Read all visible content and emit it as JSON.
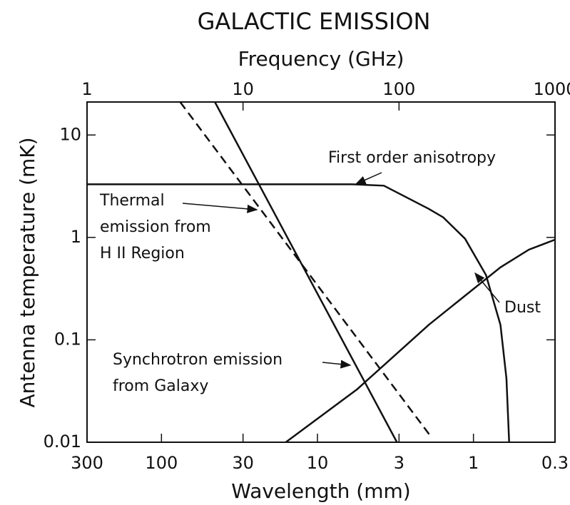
{
  "chart_data": {
    "type": "line",
    "title": "GALACTIC EMISSION",
    "xlabel": "Frequency (GHz)",
    "x2label": "Wavelength (mm)",
    "ylabel": "Antenna temperature (mK)",
    "xscale": "log",
    "yscale": "log",
    "xlim": [
      1,
      1000
    ],
    "xticks": [
      1,
      10,
      100,
      1000
    ],
    "x2lim": [
      300,
      0.3
    ],
    "x2ticks": [
      300,
      100,
      30,
      10,
      3,
      1,
      0.3
    ],
    "ylim": [
      0.01,
      21
    ],
    "yticks": [
      0.01,
      0.1,
      1,
      10
    ],
    "series": [
      {
        "label": [
          "First order anisotropy"
        ],
        "color": "#111",
        "dash": false,
        "x": [
          1,
          10,
          50,
          80,
          155,
          192,
          265,
          361,
          447,
          488,
          508
        ],
        "values": [
          3.3,
          3.3,
          3.3,
          3.2,
          1.9,
          1.57,
          0.97,
          0.43,
          0.14,
          0.042,
          0.01
        ]
      },
      {
        "label": [
          "Thermal",
          "emission from",
          "H II Region"
        ],
        "color": "#111",
        "dash": true,
        "x": [
          3.95,
          161
        ],
        "values": [
          21,
          0.0112
        ]
      },
      {
        "label": [
          "Synchrotron emission",
          "from Galaxy"
        ],
        "color": "#111",
        "dash": false,
        "x": [
          6.6,
          97
        ],
        "values": [
          21,
          0.01
        ]
      },
      {
        "label": [
          "Dust"
        ],
        "color": "#111",
        "dash": false,
        "x": [
          18.8,
          54,
          155,
          447,
          680,
          1000
        ],
        "values": [
          0.01,
          0.033,
          0.14,
          0.51,
          0.76,
          0.95
        ]
      }
    ]
  }
}
